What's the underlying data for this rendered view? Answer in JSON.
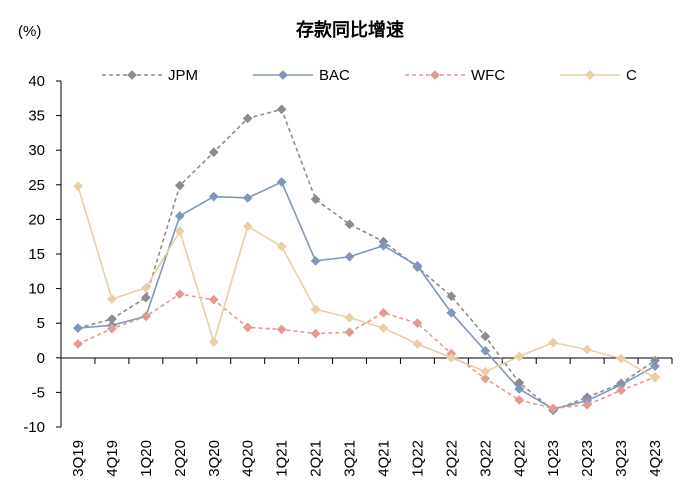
{
  "chart_data": {
    "type": "line",
    "title": "存款同比增速",
    "ylabel": "(%)",
    "xlabel": "",
    "ylim": [
      -10,
      40
    ],
    "yticks": [
      -10,
      -5,
      0,
      5,
      10,
      15,
      20,
      25,
      30,
      35,
      40
    ],
    "categories": [
      "3Q19",
      "4Q19",
      "1Q20",
      "2Q20",
      "3Q20",
      "4Q20",
      "1Q21",
      "2Q21",
      "3Q21",
      "4Q21",
      "1Q22",
      "2Q22",
      "3Q22",
      "4Q22",
      "1Q23",
      "2Q23",
      "3Q23",
      "4Q23"
    ],
    "legend_position": "top",
    "series": [
      {
        "name": "JPM",
        "color": "#8c8c8c",
        "dashed": true,
        "values": [
          4.3,
          5.6,
          8.7,
          24.9,
          29.7,
          34.6,
          35.9,
          22.9,
          19.3,
          16.8,
          13.1,
          8.9,
          3.1,
          -3.6,
          -7.6,
          -5.7,
          -3.7,
          -0.4
        ]
      },
      {
        "name": "BAC",
        "color": "#7f97bb",
        "dashed": false,
        "values": [
          4.3,
          4.7,
          6.0,
          20.5,
          23.3,
          23.1,
          25.4,
          14.0,
          14.6,
          16.2,
          13.3,
          6.5,
          1.0,
          -4.5,
          -7.4,
          -6.2,
          -3.9,
          -1.2
        ]
      },
      {
        "name": "WFC",
        "color": "#e39a92",
        "dashed": true,
        "values": [
          2.0,
          4.2,
          6.0,
          9.2,
          8.4,
          4.4,
          4.1,
          3.5,
          3.7,
          6.5,
          5.0,
          0.6,
          -3.0,
          -6.1,
          -7.3,
          -6.8,
          -4.7,
          -2.8
        ]
      },
      {
        "name": "C",
        "color": "#e8cfa4",
        "dashed": false,
        "values": [
          24.8,
          8.5,
          10.1,
          18.3,
          2.3,
          19.0,
          16.1,
          7.0,
          5.8,
          4.3,
          2.0,
          0.0,
          -2.0,
          0.2,
          2.2,
          1.2,
          -0.1,
          -2.9
        ]
      }
    ]
  }
}
